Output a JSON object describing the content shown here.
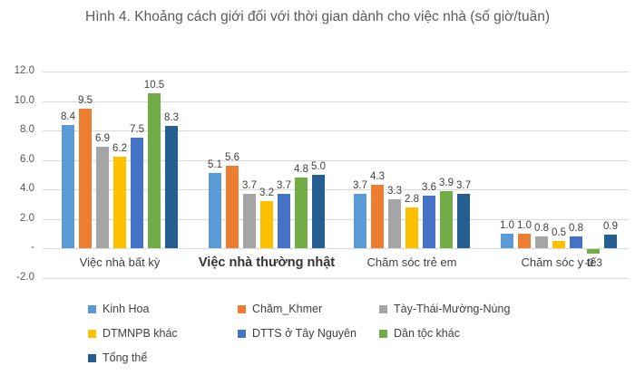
{
  "chart_data": {
    "type": "bar",
    "title": "Hình 4. Khoảng cách giới đối với thời gian dành cho việc nhà (số giờ/tuần)",
    "categories": [
      {
        "label": "Việc nhà bất kỳ",
        "bold": false
      },
      {
        "label": "Việc nhà thường nhật",
        "bold": true
      },
      {
        "label": "Chăm sóc trẻ em",
        "bold": false
      },
      {
        "label": "Chăm sóc y tế",
        "bold": false
      }
    ],
    "series": [
      {
        "name": "Kinh Hoa",
        "color": "#5B9BD5",
        "values": [
          8.4,
          5.1,
          3.7,
          1.0
        ]
      },
      {
        "name": "Chăm_Khmer",
        "color": "#ED7D31",
        "values": [
          9.5,
          5.6,
          4.3,
          1.0
        ]
      },
      {
        "name": "Tày-Thái-Mường-Nùng",
        "color": "#A5A5A5",
        "values": [
          6.9,
          3.7,
          3.3,
          0.8
        ]
      },
      {
        "name": "DTMNPB khác",
        "color": "#FFC000",
        "values": [
          6.2,
          3.2,
          2.8,
          0.5
        ]
      },
      {
        "name": "DTTS ở Tây Nguyên",
        "color": "#4472C4",
        "values": [
          7.5,
          3.7,
          3.6,
          0.8
        ]
      },
      {
        "name": "Dân tộc khác",
        "color": "#70AD47",
        "values": [
          10.5,
          4.8,
          3.9,
          -0.3
        ]
      },
      {
        "name": "Tổng thể",
        "color": "#255E91",
        "values": [
          8.3,
          5.0,
          3.7,
          0.9
        ]
      }
    ],
    "y_axis": {
      "min": -2,
      "max": 12,
      "step": 2,
      "tick_labels": [
        "12.0",
        "10.0",
        "8.0",
        "6.0",
        "4.0",
        "2.0",
        "-",
        "-2.0"
      ]
    },
    "grid": true,
    "legend_position": "bottom",
    "value_label_decimals": 1
  },
  "colors": {
    "background": "#FFFFFF",
    "gridline": "#D9D9D9",
    "title_text": "#595959",
    "axis_text": "#595959",
    "label_text": "#404040"
  }
}
